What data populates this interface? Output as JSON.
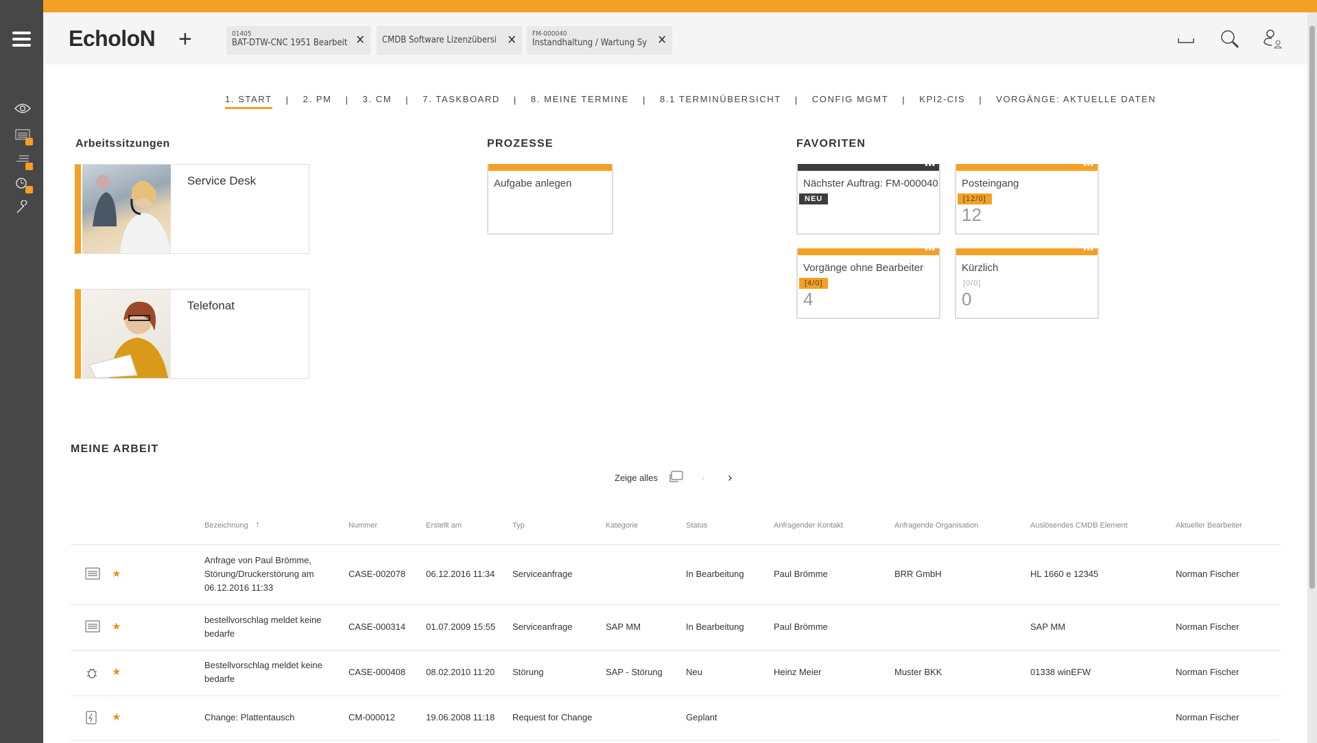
{
  "app": {
    "title": "EcholoN",
    "colors": {
      "accent": "#f5a024",
      "sidebar": "#474747",
      "neu_badge": "#3c3c3c"
    }
  },
  "sidebar": {
    "items": [
      {
        "icon": "eye-icon"
      },
      {
        "icon": "list-board-icon"
      },
      {
        "icon": "tasks-icon"
      },
      {
        "icon": "clock-icon"
      },
      {
        "icon": "wrench-icon"
      }
    ]
  },
  "open_tabs": [
    {
      "sub": "01405",
      "title": "BAT-DTW-CNC 1951 Bearbeit"
    },
    {
      "sub": "",
      "title": "CMDB Software Lizenzübersi"
    },
    {
      "sub": "FM-000040",
      "title": "Instandhaltung / Wartung Sy"
    }
  ],
  "header_icons": [
    "minimize-icon",
    "search-icon",
    "user-switch-icon"
  ],
  "nav": [
    "1. START",
    "2. PM",
    "3. CM",
    "7. TASKBOARD",
    "8. MEINE TERMINE",
    "8.1 TERMINÜBERSICHT",
    "CONFIG MGMT",
    "KPI2-CIS",
    "VORGÄNGE: AKTUELLE DATEN"
  ],
  "nav_active": 0,
  "sessions": {
    "title": "Arbeitssitzungen",
    "items": [
      "Service Desk",
      "Telefonat"
    ]
  },
  "processes": {
    "title": "PROZESSE",
    "items": [
      "Aufgabe anlegen"
    ]
  },
  "favorites": {
    "title": "FAVORITEN",
    "items": [
      {
        "title": "Nächster Auftrag: FM-000040",
        "badge": "NEU",
        "count": ""
      },
      {
        "title": "Posteingang",
        "badge": "[12/0]",
        "count": "12"
      },
      {
        "title": "Vorgänge ohne Bearbeiter",
        "badge": "[4/0]",
        "count": "4"
      },
      {
        "title": "Kürzlich",
        "badge": "[0/0]",
        "count": "0"
      }
    ]
  },
  "work": {
    "title": "MEINE ARBEIT",
    "show_all": "Zeige alles",
    "columns": [
      "Bezeichnung",
      "Nummer",
      "Erstellt am",
      "Typ",
      "Kategorie",
      "Status",
      "Anfragender Kontakt",
      "Anfragende Organisation",
      "Auslösendes CMDB Element",
      "Aktueller Bearbeiter"
    ],
    "sort_column": "Bezeichnung",
    "sort_dir": "asc",
    "rows": [
      {
        "icon": "service-request-icon",
        "cells": [
          "Anfrage von Paul Brömme, Störung/Druckerstörung am 06.12.2016 11:33",
          "CASE-002078",
          "06.12.2016 11:34",
          "Serviceanfrage",
          "",
          "In Bearbeitung",
          "Paul Brömme",
          "BRR GmbH",
          "HL 1660 e 12345",
          "Norman Fischer"
        ]
      },
      {
        "icon": "service-request-icon",
        "cells": [
          "bestellvorschlag meldet keine bedarfe",
          "CASE-000314",
          "01.07.2009 15:55",
          "Serviceanfrage",
          "SAP MM",
          "In Bearbeitung",
          "Paul Brömme",
          "",
          "SAP MM",
          "Norman Fischer"
        ]
      },
      {
        "icon": "bug-icon",
        "cells": [
          "Bestellvorschlag meldet keine bedarfe",
          "CASE-000408",
          "08.02.2010 11:20",
          "Störung",
          "SAP - Störung",
          "Neu",
          "Heinz Meier",
          "Muster BKK",
          "01338 winEFW",
          "Norman Fischer"
        ]
      },
      {
        "icon": "change-icon",
        "cells": [
          "Change: Plattentausch",
          "CM-000012",
          "19.06.2008 11:18",
          "Request for Change",
          "",
          "Geplant",
          "",
          "",
          "",
          "Norman Fischer"
        ]
      }
    ]
  }
}
